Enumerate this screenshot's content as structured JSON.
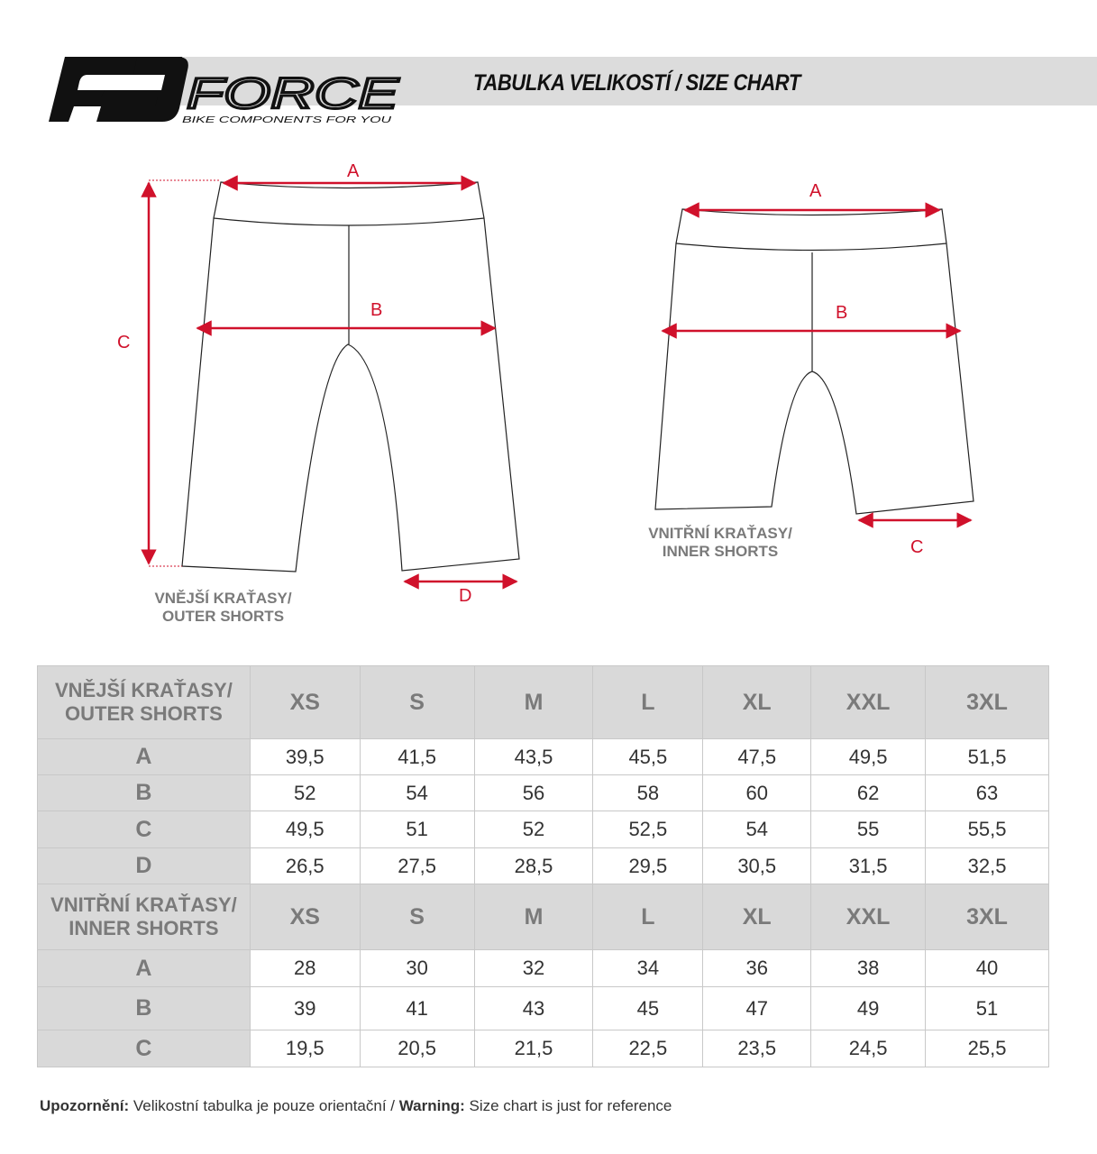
{
  "header": {
    "brand": "FORCE",
    "tagline": "BIKE COMPONENTS FOR YOU",
    "title": "TABULKA VELIKOSTÍ / SIZE CHART"
  },
  "colors": {
    "accent": "#d0112b",
    "header_band": "#dcdcdc",
    "table_header": "#d9d9d9"
  },
  "diagrams": {
    "outer": {
      "caption_line1": "VNĚJŠÍ KRAŤASY/",
      "caption_line2": "OUTER SHORTS",
      "labels": {
        "a": "A",
        "b": "B",
        "c": "C",
        "d": "D"
      }
    },
    "inner": {
      "caption_line1": "VNITŘNÍ KRAŤASY/",
      "caption_line2": "INNER SHORTS",
      "labels": {
        "a": "A",
        "b": "B",
        "c": "C"
      }
    }
  },
  "table": {
    "outer": {
      "title_line1": "VNĚJŠÍ KRAŤASY/",
      "title_line2": "OUTER SHORTS",
      "sizes": [
        "XS",
        "S",
        "M",
        "L",
        "XL",
        "XXL",
        "3XL"
      ],
      "rows": [
        {
          "label": "A",
          "values": [
            "39,5",
            "41,5",
            "43,5",
            "45,5",
            "47,5",
            "49,5",
            "51,5"
          ]
        },
        {
          "label": "B",
          "values": [
            "52",
            "54",
            "56",
            "58",
            "60",
            "62",
            "63"
          ]
        },
        {
          "label": "C",
          "values": [
            "49,5",
            "51",
            "52",
            "52,5",
            "54",
            "55",
            "55,5"
          ]
        },
        {
          "label": "D",
          "values": [
            "26,5",
            "27,5",
            "28,5",
            "29,5",
            "30,5",
            "31,5",
            "32,5"
          ]
        }
      ]
    },
    "inner": {
      "title_line1": "VNITŘNÍ KRAŤASY/",
      "title_line2": "INNER SHORTS",
      "sizes": [
        "XS",
        "S",
        "M",
        "L",
        "XL",
        "XXL",
        "3XL"
      ],
      "rows": [
        {
          "label": "A",
          "values": [
            "28",
            "30",
            "32",
            "34",
            "36",
            "38",
            "40"
          ]
        },
        {
          "label": "B",
          "values": [
            "39",
            "41",
            "43",
            "45",
            "47",
            "49",
            "51"
          ]
        },
        {
          "label": "C",
          "values": [
            "19,5",
            "20,5",
            "21,5",
            "22,5",
            "23,5",
            "24,5",
            "25,5"
          ]
        }
      ]
    }
  },
  "footer": {
    "warning_cz_label": "Upozornění:",
    "warning_cz": " Velikostní tabulka je pouze orientační / ",
    "warning_en_label": "Warning:",
    "warning_en": " Size chart is just for reference"
  }
}
